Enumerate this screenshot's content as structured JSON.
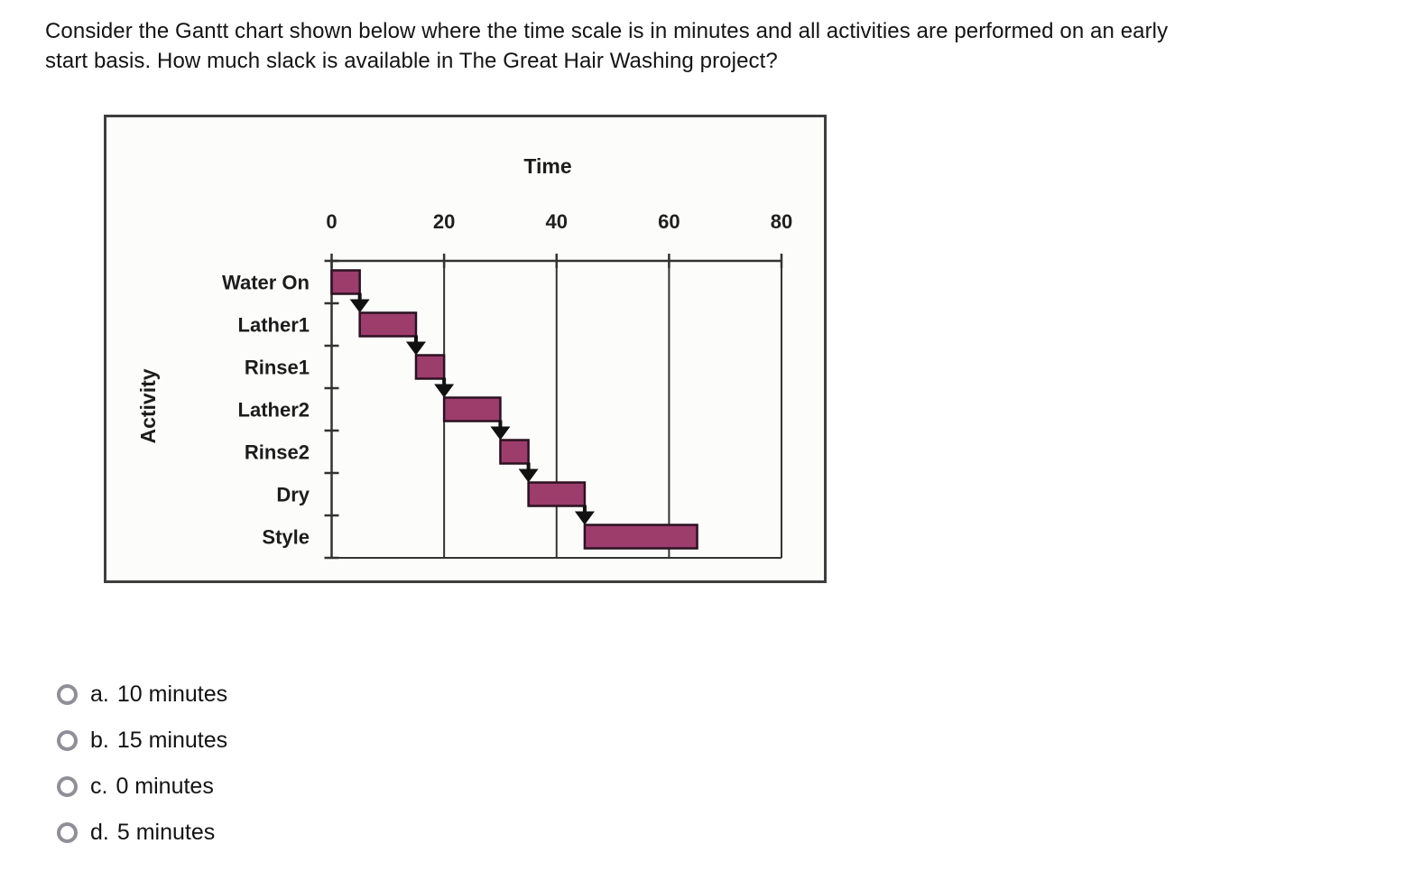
{
  "question": {
    "lines": [
      "Consider the Gantt chart shown below where the time scale is in minutes and all activities are performed on an early",
      "start basis. How much slack is available in The Great Hair Washing project?"
    ]
  },
  "chart_data": {
    "type": "bar",
    "variant": "gantt",
    "x_axis_title": "Time",
    "y_axis_title": "Activity",
    "x_ticks": [
      0,
      20,
      40,
      60,
      80
    ],
    "xlim": [
      0,
      80
    ],
    "gridlines_at": [
      20,
      40,
      60
    ],
    "connectors": "finish-to-start arrows between consecutive activities",
    "activities": [
      {
        "label": "Water On",
        "start": 0,
        "end": 5
      },
      {
        "label": "Lather1",
        "start": 5,
        "end": 15
      },
      {
        "label": "Rinse1",
        "start": 15,
        "end": 20
      },
      {
        "label": "Lather2",
        "start": 20,
        "end": 30
      },
      {
        "label": "Rinse2",
        "start": 30,
        "end": 35
      },
      {
        "label": "Dry",
        "start": 35,
        "end": 45
      },
      {
        "label": "Style",
        "start": 45,
        "end": 65
      }
    ],
    "bar_color": "#9c3d6c",
    "bar_border_color": "#2b1220",
    "axis_color": "#333333",
    "arrow_color": "#111111"
  },
  "options": [
    {
      "letter": "a.",
      "label": "10 minutes"
    },
    {
      "letter": "b.",
      "label": "15 minutes"
    },
    {
      "letter": "c.",
      "label": "0 minutes"
    },
    {
      "letter": "d.",
      "label": "5 minutes"
    }
  ]
}
